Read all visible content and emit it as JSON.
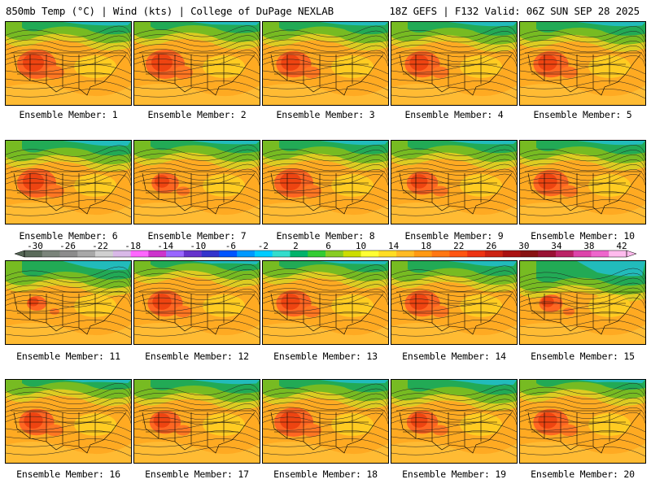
{
  "header": {
    "left_title": "850mb Temp (°C) | Wind (kts) | College of DuPage NEXLAB",
    "right_title": "18Z GEFS | F132 Valid: 06Z SUN SEP 28 2025"
  },
  "members": [
    {
      "label": "Ensemble Member: 1"
    },
    {
      "label": "Ensemble Member: 2"
    },
    {
      "label": "Ensemble Member: 3"
    },
    {
      "label": "Ensemble Member: 4"
    },
    {
      "label": "Ensemble Member: 5"
    },
    {
      "label": "Ensemble Member: 6"
    },
    {
      "label": "Ensemble Member: 7"
    },
    {
      "label": "Ensemble Member: 8"
    },
    {
      "label": "Ensemble Member: 9"
    },
    {
      "label": "Ensemble Member: 10"
    },
    {
      "label": "Ensemble Member: 11"
    },
    {
      "label": "Ensemble Member: 12"
    },
    {
      "label": "Ensemble Member: 13"
    },
    {
      "label": "Ensemble Member: 14"
    },
    {
      "label": "Ensemble Member: 15"
    },
    {
      "label": "Ensemble Member: 16"
    },
    {
      "label": "Ensemble Member: 17"
    },
    {
      "label": "Ensemble Member: 18"
    },
    {
      "label": "Ensemble Member: 19"
    },
    {
      "label": "Ensemble Member: 20"
    }
  ],
  "colorbar": {
    "tick_labels": [
      "-30",
      "-26",
      "-22",
      "-18",
      "-14",
      "-10",
      "-6",
      "-2",
      "2",
      "6",
      "10",
      "14",
      "18",
      "22",
      "26",
      "30",
      "34",
      "38",
      "42"
    ],
    "colors": [
      "#5a6b5a",
      "#7a847a",
      "#8c8c8c",
      "#a8a8a8",
      "#d0d0d0",
      "#d9b8e8",
      "#ff66ff",
      "#cc33cc",
      "#9966ff",
      "#6633cc",
      "#3333cc",
      "#0055ff",
      "#0099ff",
      "#00ccff",
      "#33ddcc",
      "#00b36b",
      "#33cc33",
      "#88cc22",
      "#ccdd00",
      "#ffff33",
      "#ffdd22",
      "#ffbb22",
      "#ff9911",
      "#ff7711",
      "#ff5511",
      "#ee3311",
      "#cc2211",
      "#aa1111",
      "#881111",
      "#991133",
      "#bb2266",
      "#dd44aa",
      "#ee66cc",
      "#ffbbee"
    ]
  }
}
